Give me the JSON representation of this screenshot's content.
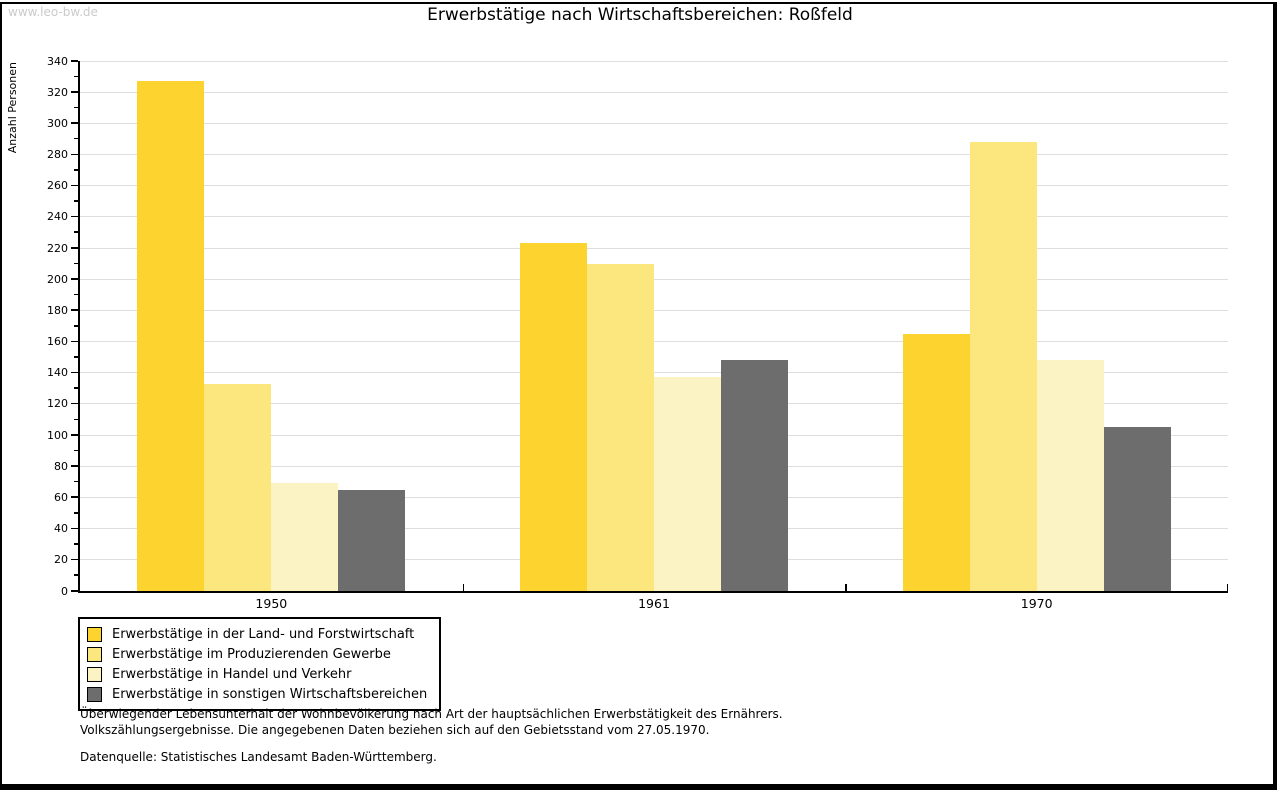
{
  "watermark": "www.leo-bw.de",
  "title": "Erwerbstätige nach Wirtschaftsbereichen: Roßfeld",
  "chart_data": {
    "type": "bar",
    "title": "Erwerbstätige nach Wirtschaftsbereichen: Roßfeld",
    "xlabel": "",
    "ylabel": "Anzahl Personen",
    "ylim": [
      0,
      340
    ],
    "ytick_step": 20,
    "yminor_step": 10,
    "grid": "horizontal-major",
    "legend_position": "bottom-left",
    "categories": [
      "1950",
      "1961",
      "1970"
    ],
    "series": [
      {
        "name": "Erwerbstätige in der Land- und Forstwirtschaft",
        "color": "#fcd32f",
        "values": [
          327,
          223,
          165
        ]
      },
      {
        "name": "Erwerbstätige im Produzierenden Gewerbe",
        "color": "#fbe77d",
        "values": [
          133,
          210,
          288
        ]
      },
      {
        "name": "Erwerbstätige in Handel und Verkehr",
        "color": "#fcf3c5",
        "values": [
          69,
          137,
          148
        ]
      },
      {
        "name": "Erwerbstätige in sonstigen Wirtschaftsbereichen",
        "color": "#6d6d6d",
        "values": [
          65,
          148,
          105
        ]
      }
    ]
  },
  "footer": {
    "line1": "Überwiegender Lebensunterhalt der Wohnbevölkerung nach Art der hauptsächlichen Erwerbstätigkeit des Ernährers.",
    "line2": "Volkszählungsergebnisse. Die angegebenen Daten beziehen sich auf den Gebietsstand vom 27.05.1970.",
    "source": "Datenquelle: Statistisches Landesamt Baden-Württemberg."
  }
}
